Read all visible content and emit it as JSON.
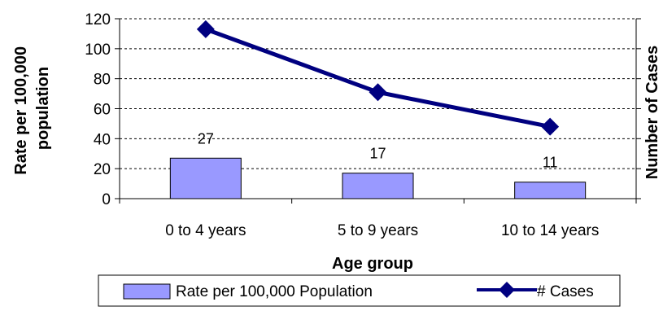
{
  "chart_data": {
    "type": "bar",
    "categories": [
      "0 to 4 years",
      "5 to 9 years",
      "10 to 14 years"
    ],
    "series": [
      {
        "name": "Rate per 100,000 Population",
        "type": "bar",
        "axis": "left",
        "values": [
          27,
          17,
          11
        ],
        "color": "#9999ff"
      },
      {
        "name": "# Cases",
        "type": "line",
        "axis": "right",
        "values": [
          113,
          71,
          48
        ],
        "color": "#000080",
        "marker": "diamond"
      }
    ],
    "xlabel": "Age group",
    "ylabel": "Rate per 100,000 population",
    "y2label": "Number of Cases",
    "ylim": [
      0,
      120
    ],
    "yticks": [
      0,
      20,
      40,
      60,
      80,
      100,
      120
    ],
    "grid": true,
    "legend": "bottom"
  }
}
